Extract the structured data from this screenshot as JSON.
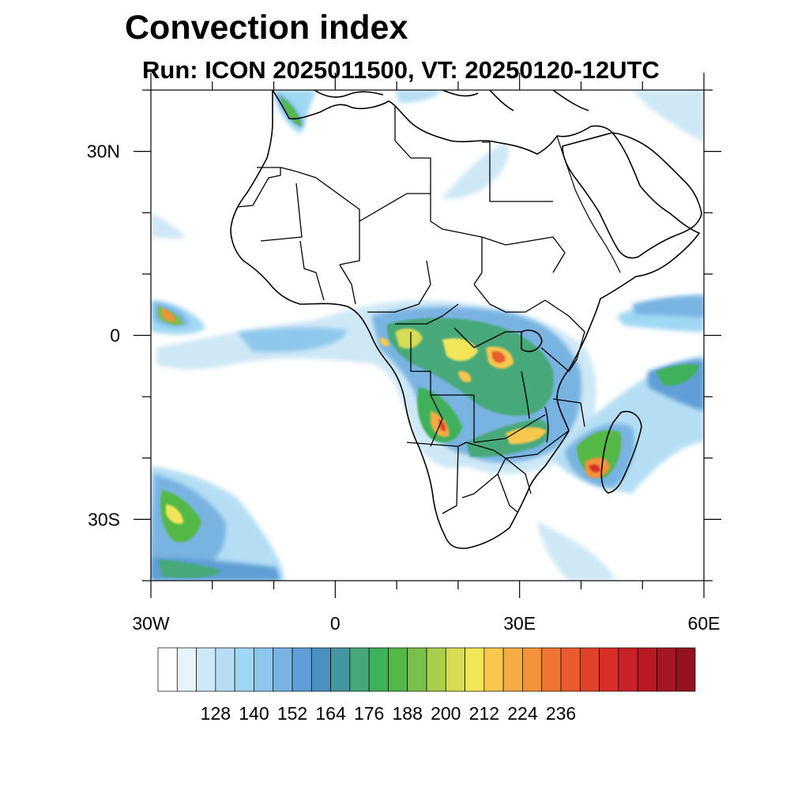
{
  "title": "Convection index",
  "subtitle": "Run: ICON 2025011500,  VT: 20250120-12UTC",
  "map": {
    "lon_range": [
      -30,
      60
    ],
    "lat_range": [
      -40,
      40
    ],
    "lat_ticks": [
      {
        "value": 30,
        "label": "30N"
      },
      {
        "value": 0,
        "label": "0"
      },
      {
        "value": -30,
        "label": "30S"
      }
    ],
    "lon_ticks": [
      {
        "value": -30,
        "label": "30W"
      },
      {
        "value": 0,
        "label": "0"
      },
      {
        "value": 30,
        "label": "30E"
      },
      {
        "value": 60,
        "label": "60E"
      }
    ],
    "minor_step_deg": 10
  },
  "colorbar": {
    "labels": [
      "128",
      "140",
      "152",
      "164",
      "176",
      "188",
      "200",
      "212",
      "224",
      "236"
    ],
    "colors": [
      "#ffffff",
      "#e8f4fb",
      "#cfe8f6",
      "#b5def4",
      "#a0d8f3",
      "#8dc7ec",
      "#78b3e2",
      "#5f9ed6",
      "#4b90c1",
      "#4596a0",
      "#46a87a",
      "#3fb15a",
      "#53b845",
      "#79c04a",
      "#a9ce4e",
      "#d6dd52",
      "#f2e55a",
      "#f7c84d",
      "#f7ac44",
      "#f4913b",
      "#ee7533",
      "#e85b2d",
      "#e04229",
      "#d92d28",
      "#c82128",
      "#b71a25",
      "#a51722",
      "#92131f"
    ]
  }
}
